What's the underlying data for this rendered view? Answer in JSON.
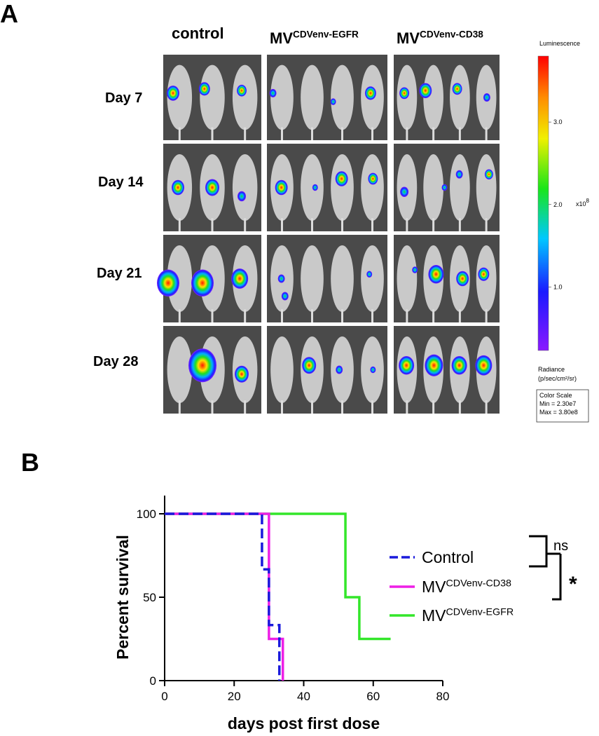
{
  "panel_labels": [
    "A",
    "B"
  ],
  "panel_a": {
    "columns": [
      {
        "text": "control"
      },
      {
        "text": "MV",
        "superscript": "CDVenv-EGFR"
      },
      {
        "text": "MV",
        "superscript": "CDVenv-CD38"
      }
    ],
    "rows": [
      "Day 7",
      "Day 14",
      "Day 21",
      "Day 28"
    ],
    "colorbar": {
      "title": "Luminescence",
      "lim": [
        0.23,
        3.8
      ],
      "ticks": [
        {
          "value": 3,
          "label": "3.0"
        },
        {
          "value": 2,
          "label": "2.0"
        },
        {
          "value": 1,
          "label": "1.0"
        }
      ],
      "multiplier": "x10",
      "multiplier_exponent": "8",
      "unit_title": "Radiance",
      "unit": "(p/sec/cm²/sr)",
      "box": [
        "Color Scale",
        "Min = 2.30e7",
        "Max = 3.80e8"
      ]
    }
  },
  "chart_data": {
    "type": "line",
    "step": true,
    "xlabel": "days post first dose",
    "ylabel": "Percent survival",
    "xlim": [
      0,
      80
    ],
    "xticks": [
      0,
      20,
      40,
      60,
      80
    ],
    "ylim": [
      0,
      100
    ],
    "yticks": [
      0,
      50,
      100
    ],
    "series": [
      {
        "name": "Control",
        "color": "#1a1adc",
        "dashed": true,
        "x": [
          0,
          28,
          28,
          30,
          30,
          33,
          33
        ],
        "values": [
          100,
          100,
          66.7,
          66.7,
          33.3,
          33.3,
          0
        ]
      },
      {
        "name": "MV",
        "superscript": "CDVenv-CD38",
        "color": "#ee1fe6",
        "dashed": false,
        "x": [
          0,
          30,
          30,
          34,
          34
        ],
        "values": [
          100,
          100,
          25,
          25,
          0
        ]
      },
      {
        "name": "MV",
        "superscript": "CDVenv-EGFR",
        "color": "#33e62a",
        "dashed": false,
        "x": [
          0,
          52,
          52,
          56,
          56,
          65
        ],
        "values": [
          100,
          100,
          50,
          50,
          25,
          25
        ]
      }
    ],
    "annotations": [
      "ns",
      "*"
    ]
  }
}
